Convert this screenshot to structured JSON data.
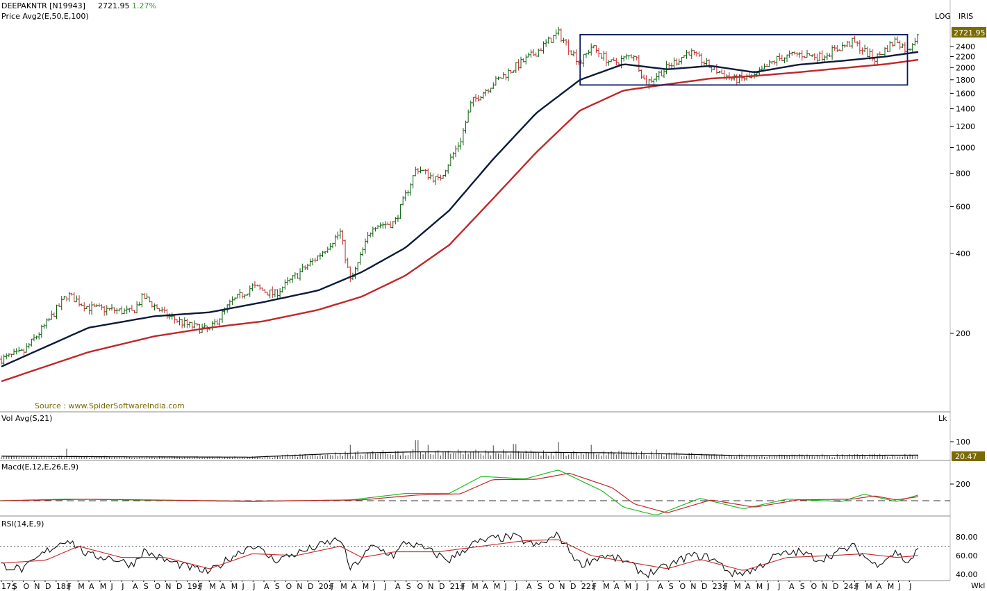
{
  "header": {
    "symbol": "DEEPAKNTR [N19943]",
    "last": "2721.95",
    "change": "1.27%",
    "price_study": "Price  Avg2(E,50,E,100)",
    "scale_mode": "LOG",
    "brand": "IRIS",
    "last_badge": "2721.95",
    "source": "Source : www.SpiderSoftwareIndia.com"
  },
  "colors": {
    "up": "#0b5e0b",
    "down": "#c0282a",
    "ema50": "#0b1a3a",
    "ema100": "#c0282a",
    "macd": "#22bb22",
    "signal": "#c0282a",
    "rsi": "#111111",
    "rsi_sig": "#c0282a",
    "accent": "#7a6a00",
    "box": "#0b1a5a"
  },
  "panels": {
    "volume": {
      "title": "Vol  Avg(S,21)",
      "unit": "Lk",
      "tick": "100",
      "badge": "20.47"
    },
    "macd": {
      "title": "Macd(E,12,E,26,E,9)",
      "tick": "200"
    },
    "rsi": {
      "title": "RSI(14,E,9)",
      "ticks": [
        "80.00",
        "60.00",
        "40.00"
      ]
    }
  },
  "footer": {
    "period": "Wkl"
  },
  "chart_data": {
    "type": "ohlc-weekly",
    "scale": "log",
    "y_ticks": [
      2400,
      2200,
      2000,
      1800,
      1600,
      1400,
      1200,
      1000,
      800,
      600,
      400,
      200
    ],
    "x_labels": [
      "17:J",
      "S",
      "O",
      "N",
      "D",
      "18:J",
      "F",
      "M",
      "A",
      "M",
      "J",
      "J",
      "A",
      "S",
      "O",
      "N",
      "D",
      "19:J",
      "F",
      "M",
      "A",
      "M",
      "J",
      "J",
      "A",
      "S",
      "O",
      "N",
      "D",
      "20:J",
      "F",
      "M",
      "A",
      "M",
      "J",
      "J",
      "A",
      "S",
      "O",
      "N",
      "D",
      "21:J",
      "F",
      "M",
      "A",
      "M",
      "J",
      "J",
      "A",
      "S",
      "O",
      "N",
      "D",
      "22:J",
      "F",
      "M",
      "A",
      "M",
      "J",
      "J",
      "A",
      "S",
      "O",
      "N",
      "D",
      "23:J",
      "F",
      "M",
      "A",
      "M",
      "J",
      "J",
      "A",
      "S",
      "O",
      "N",
      "D",
      "24:J",
      "F",
      "M",
      "A",
      "M",
      "J",
      "J"
    ],
    "close_path": [
      [
        "2017-07",
        160
      ],
      [
        "2017-09",
        170
      ],
      [
        "2017-11",
        215
      ],
      [
        "2018-01",
        280
      ],
      [
        "2018-03",
        250
      ],
      [
        "2018-05",
        245
      ],
      [
        "2018-07",
        240
      ],
      [
        "2018-08",
        275
      ],
      [
        "2018-10",
        235
      ],
      [
        "2018-12",
        215
      ],
      [
        "2019-02",
        205
      ],
      [
        "2019-04",
        260
      ],
      [
        "2019-06",
        300
      ],
      [
        "2019-08",
        280
      ],
      [
        "2019-10",
        330
      ],
      [
        "2019-12",
        390
      ],
      [
        "2020-02",
        480
      ],
      [
        "2020-03",
        310
      ],
      [
        "2020-05",
        510
      ],
      [
        "2020-07",
        520
      ],
      [
        "2020-08",
        660
      ],
      [
        "2020-09",
        840
      ],
      [
        "2020-11",
        750
      ],
      [
        "2021-01",
        1060
      ],
      [
        "2021-02",
        1480
      ],
      [
        "2021-04",
        1740
      ],
      [
        "2021-06",
        2000
      ],
      [
        "2021-08",
        2290
      ],
      [
        "2021-10",
        2700
      ],
      [
        "2021-12",
        2080
      ],
      [
        "2022-01",
        2400
      ],
      [
        "2022-03",
        2060
      ],
      [
        "2022-05",
        2250
      ],
      [
        "2022-06",
        1740
      ],
      [
        "2022-08",
        2000
      ],
      [
        "2022-10",
        2300
      ],
      [
        "2022-12",
        2000
      ],
      [
        "2023-02",
        1800
      ],
      [
        "2023-04",
        1840
      ],
      [
        "2023-06",
        2150
      ],
      [
        "2023-08",
        2250
      ],
      [
        "2023-10",
        2200
      ],
      [
        "2024-01",
        2500
      ],
      [
        "2024-03",
        2150
      ],
      [
        "2024-05",
        2550
      ],
      [
        "2024-06",
        2300
      ],
      [
        "2024-07",
        2721.95
      ]
    ],
    "ema50_path": [
      [
        "2017-07",
        150
      ],
      [
        "2018-03",
        210
      ],
      [
        "2018-09",
        232
      ],
      [
        "2019-02",
        240
      ],
      [
        "2019-07",
        262
      ],
      [
        "2019-12",
        290
      ],
      [
        "2020-04",
        340
      ],
      [
        "2020-08",
        420
      ],
      [
        "2020-12",
        580
      ],
      [
        "2021-04",
        900
      ],
      [
        "2021-08",
        1350
      ],
      [
        "2021-12",
        1800
      ],
      [
        "2022-04",
        2060
      ],
      [
        "2022-08",
        1970
      ],
      [
        "2022-12",
        2030
      ],
      [
        "2023-04",
        1920
      ],
      [
        "2023-08",
        2050
      ],
      [
        "2023-12",
        2120
      ],
      [
        "2024-04",
        2200
      ],
      [
        "2024-07",
        2290
      ]
    ],
    "ema100_path": [
      [
        "2017-07",
        132
      ],
      [
        "2018-03",
        170
      ],
      [
        "2018-09",
        195
      ],
      [
        "2019-02",
        210
      ],
      [
        "2019-07",
        222
      ],
      [
        "2019-12",
        245
      ],
      [
        "2020-04",
        275
      ],
      [
        "2020-08",
        330
      ],
      [
        "2020-12",
        430
      ],
      [
        "2021-04",
        640
      ],
      [
        "2021-08",
        960
      ],
      [
        "2021-12",
        1380
      ],
      [
        "2022-04",
        1640
      ],
      [
        "2022-08",
        1730
      ],
      [
        "2022-12",
        1820
      ],
      [
        "2023-04",
        1860
      ],
      [
        "2023-08",
        1920
      ],
      [
        "2023-12",
        1990
      ],
      [
        "2024-04",
        2060
      ],
      [
        "2024-07",
        2140
      ]
    ],
    "consolidation_box": {
      "from": "2021-12",
      "to": "2024-06",
      "low": 1720,
      "high": 2660
    },
    "volume": {
      "ylim": [
        0,
        180
      ],
      "avg_path": [
        [
          "2017-07",
          15
        ],
        [
          "2018-06",
          12
        ],
        [
          "2019-06",
          10
        ],
        [
          "2020-02",
          30
        ],
        [
          "2020-09",
          38
        ],
        [
          "2021-06",
          37
        ],
        [
          "2022-03",
          33
        ],
        [
          "2022-09",
          26
        ],
        [
          "2023-03",
          18
        ],
        [
          "2023-09",
          19
        ],
        [
          "2024-07",
          20.47
        ]
      ],
      "spikes": [
        [
          "2018-01",
          55
        ],
        [
          "2020-03",
          75
        ],
        [
          "2020-09",
          100
        ],
        [
          "2020-10",
          75
        ],
        [
          "2021-04",
          72
        ],
        [
          "2021-06",
          80
        ],
        [
          "2021-10",
          90
        ],
        [
          "2022-01",
          75
        ],
        [
          "2022-07",
          50
        ]
      ]
    },
    "macd": {
      "ylim": [
        -180,
        420
      ],
      "macd_path": [
        [
          "2017-07",
          0
        ],
        [
          "2018-01",
          20
        ],
        [
          "2019-06",
          -10
        ],
        [
          "2020-03",
          10
        ],
        [
          "2020-08",
          90
        ],
        [
          "2020-12",
          90
        ],
        [
          "2021-03",
          300
        ],
        [
          "2021-07",
          270
        ],
        [
          "2021-10",
          380
        ],
        [
          "2022-02",
          120
        ],
        [
          "2022-04",
          -80
        ],
        [
          "2022-07",
          -180
        ],
        [
          "2022-11",
          30
        ],
        [
          "2023-03",
          -100
        ],
        [
          "2023-07",
          20
        ],
        [
          "2023-12",
          -10
        ],
        [
          "2024-02",
          80
        ],
        [
          "2024-05",
          -10
        ],
        [
          "2024-07",
          70
        ]
      ],
      "signal_path": [
        [
          "2017-07",
          0
        ],
        [
          "2018-03",
          18
        ],
        [
          "2019-06",
          -5
        ],
        [
          "2020-04",
          10
        ],
        [
          "2020-09",
          70
        ],
        [
          "2021-01",
          85
        ],
        [
          "2021-04",
          260
        ],
        [
          "2021-08",
          265
        ],
        [
          "2021-11",
          340
        ],
        [
          "2022-03",
          160
        ],
        [
          "2022-05",
          -40
        ],
        [
          "2022-08",
          -150
        ],
        [
          "2022-12",
          10
        ],
        [
          "2023-04",
          -80
        ],
        [
          "2023-08",
          10
        ],
        [
          "2024-01",
          20
        ],
        [
          "2024-03",
          60
        ],
        [
          "2024-05",
          10
        ],
        [
          "2024-07",
          50
        ]
      ]
    },
    "rsi": {
      "ylim": [
        35,
        90
      ],
      "ref_line": 70,
      "rsi_path": [
        [
          "2017-07",
          50
        ],
        [
          "2017-09",
          45
        ],
        [
          "2017-11",
          64
        ],
        [
          "2018-01",
          78
        ],
        [
          "2018-03",
          60
        ],
        [
          "2018-05",
          58
        ],
        [
          "2018-07",
          50
        ],
        [
          "2018-08",
          65
        ],
        [
          "2018-10",
          55
        ],
        [
          "2018-12",
          48
        ],
        [
          "2019-02",
          42
        ],
        [
          "2019-04",
          58
        ],
        [
          "2019-06",
          72
        ],
        [
          "2019-08",
          55
        ],
        [
          "2019-10",
          62
        ],
        [
          "2019-12",
          70
        ],
        [
          "2020-02",
          78
        ],
        [
          "2020-03",
          45
        ],
        [
          "2020-05",
          70
        ],
        [
          "2020-07",
          60
        ],
        [
          "2020-08",
          75
        ],
        [
          "2020-10",
          66
        ],
        [
          "2020-12",
          55
        ],
        [
          "2021-02",
          72
        ],
        [
          "2021-04",
          78
        ],
        [
          "2021-06",
          80
        ],
        [
          "2021-08",
          70
        ],
        [
          "2021-10",
          82
        ],
        [
          "2021-12",
          50
        ],
        [
          "2022-02",
          60
        ],
        [
          "2022-04",
          55
        ],
        [
          "2022-06",
          40
        ],
        [
          "2022-08",
          48
        ],
        [
          "2022-10",
          60
        ],
        [
          "2022-12",
          58
        ],
        [
          "2023-02",
          40
        ],
        [
          "2023-04",
          45
        ],
        [
          "2023-06",
          60
        ],
        [
          "2023-08",
          64
        ],
        [
          "2023-10",
          56
        ],
        [
          "2024-01",
          70
        ],
        [
          "2024-03",
          50
        ],
        [
          "2024-05",
          64
        ],
        [
          "2024-06",
          52
        ],
        [
          "2024-07",
          66
        ]
      ],
      "signal_path": [
        [
          "2017-07",
          52
        ],
        [
          "2017-11",
          55
        ],
        [
          "2018-02",
          70
        ],
        [
          "2018-06",
          58
        ],
        [
          "2018-10",
          58
        ],
        [
          "2019-02",
          46
        ],
        [
          "2019-06",
          62
        ],
        [
          "2019-10",
          60
        ],
        [
          "2020-02",
          70
        ],
        [
          "2020-04",
          58
        ],
        [
          "2020-07",
          64
        ],
        [
          "2020-11",
          64
        ],
        [
          "2021-03",
          70
        ],
        [
          "2021-07",
          76
        ],
        [
          "2021-10",
          77
        ],
        [
          "2022-01",
          60
        ],
        [
          "2022-05",
          52
        ],
        [
          "2022-08",
          46
        ],
        [
          "2022-11",
          56
        ],
        [
          "2023-03",
          44
        ],
        [
          "2023-07",
          58
        ],
        [
          "2023-11",
          60
        ],
        [
          "2024-02",
          62
        ],
        [
          "2024-05",
          58
        ],
        [
          "2024-07",
          60
        ]
      ]
    }
  }
}
